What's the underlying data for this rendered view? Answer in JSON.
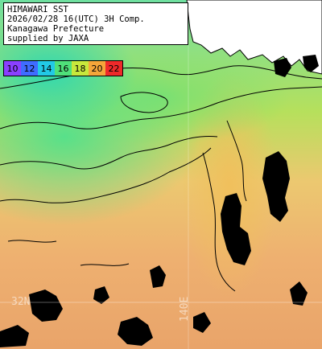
{
  "caption": {
    "line1": "HIMAWARI SST",
    "line2": "2026/02/28 16(UTC) 3H Comp.",
    "line3": "Kanagawa Prefecture",
    "line4": "supplied by JAXA"
  },
  "colorbar": {
    "ticks": [
      {
        "label": "10",
        "color": "#8a40ff"
      },
      {
        "label": "12",
        "color": "#3f6cff"
      },
      {
        "label": "14",
        "color": "#22c9e6"
      },
      {
        "label": "16",
        "color": "#4fe07a"
      },
      {
        "label": "18",
        "color": "#c8e83c"
      },
      {
        "label": "20",
        "color": "#f4a63a"
      },
      {
        "label": "22",
        "color": "#ee2a2a"
      }
    ]
  },
  "grid_labels": {
    "lat": "32N",
    "lon": "140E"
  },
  "colors": {
    "land": "#ffffff",
    "cloud": "#000000",
    "contour": "#000000"
  }
}
